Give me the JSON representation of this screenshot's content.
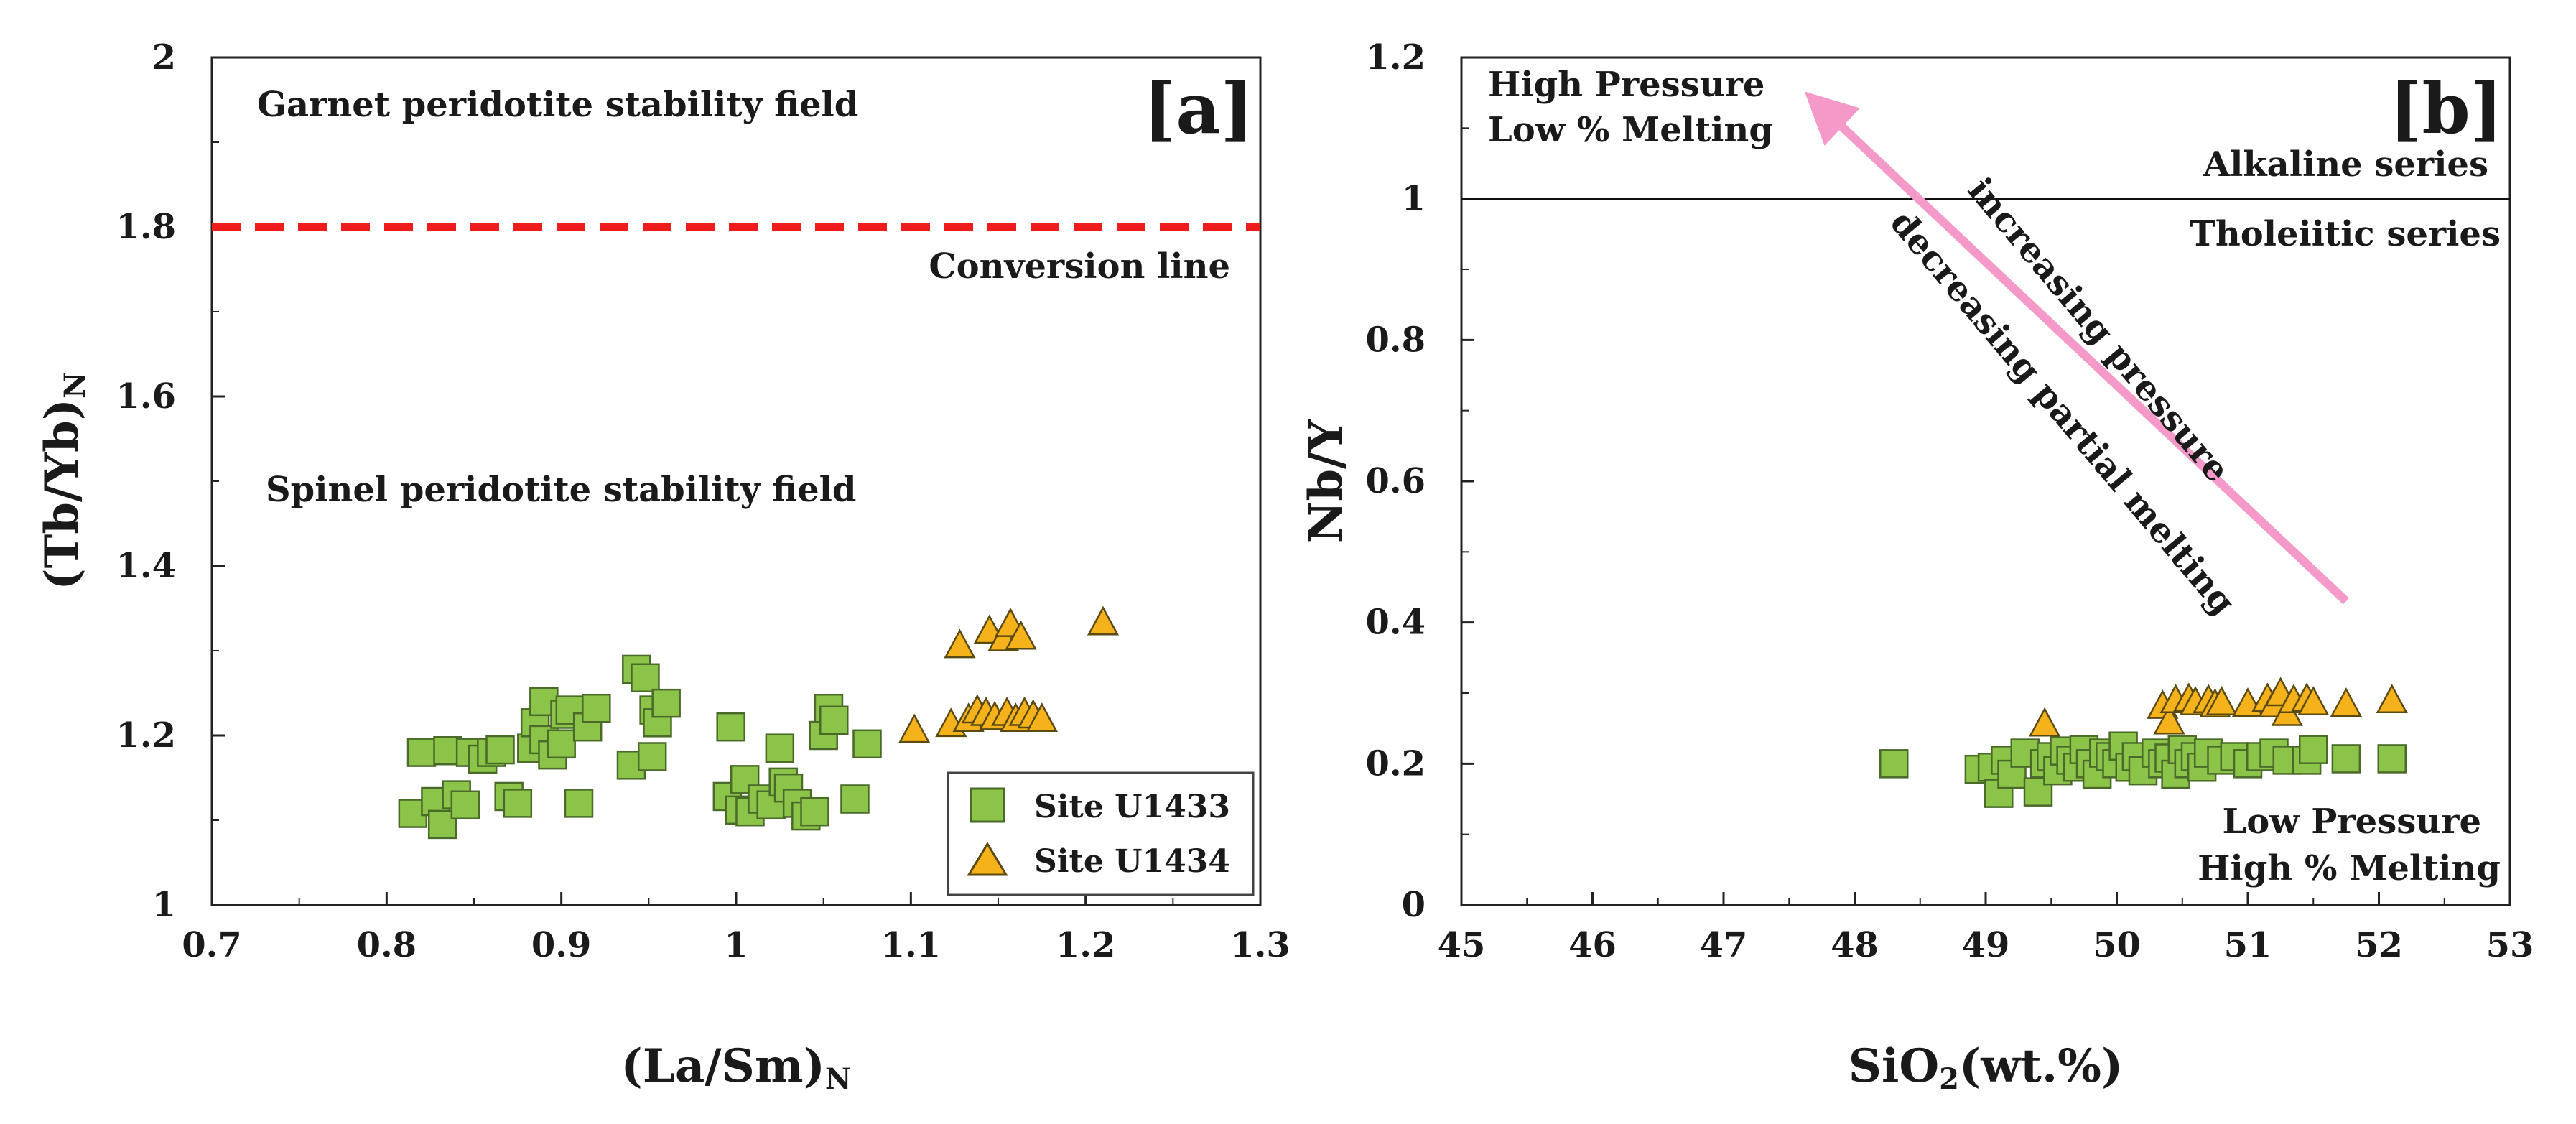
{
  "colors": {
    "u1433_fill": "#8cc44a",
    "u1433_stroke": "#4a6a2a",
    "u1434_fill": "#f5b21a",
    "u1434_stroke": "#5a4a10",
    "conversion_line": "#ee1c1c",
    "arrow": "#f59ac8",
    "axis": "#222222"
  },
  "chart_data": [
    {
      "id": "a",
      "type": "scatter",
      "panel_label": "[a]",
      "xlabel": {
        "main": "(La/Sm)",
        "sub": "N"
      },
      "ylabel": {
        "main": "(Tb/Yb)",
        "sub": "N"
      },
      "xlim": [
        0.7,
        1.3
      ],
      "ylim": [
        1,
        2
      ],
      "xticks": [
        0.7,
        0.8,
        0.9,
        1,
        1.1,
        1.2,
        1.3
      ],
      "xtick_labels": [
        "0.7",
        "0.8",
        "0.9",
        "1",
        "1.1",
        "1.2",
        "1.3"
      ],
      "yticks": [
        1,
        1.2,
        1.4,
        1.6,
        1.8,
        2
      ],
      "ytick_labels": [
        "1",
        "1.2",
        "1.4",
        "1.6",
        "1.8",
        "2"
      ],
      "grid": false,
      "reference_lines": [
        {
          "y": 1.8,
          "style": "dashed",
          "label": "Conversion line"
        }
      ],
      "annotations": [
        "Garnet peridotite stability field",
        "Spinel peridotite stability field"
      ],
      "legend": {
        "position": "bottom-right",
        "entries": [
          "Site U1433",
          "Site U1434"
        ]
      },
      "series": [
        {
          "name": "Site U1433",
          "marker": "square",
          "points": [
            [
              0.815,
              1.108
            ],
            [
              0.82,
              1.18
            ],
            [
              0.828,
              1.122
            ],
            [
              0.832,
              1.095
            ],
            [
              0.835,
              1.182
            ],
            [
              0.84,
              1.13
            ],
            [
              0.845,
              1.118
            ],
            [
              0.848,
              1.18
            ],
            [
              0.855,
              1.172
            ],
            [
              0.86,
              1.18
            ],
            [
              0.865,
              1.183
            ],
            [
              0.87,
              1.128
            ],
            [
              0.875,
              1.12
            ],
            [
              0.883,
              1.185
            ],
            [
              0.885,
              1.215
            ],
            [
              0.89,
              1.195
            ],
            [
              0.89,
              1.24
            ],
            [
              0.895,
              1.177
            ],
            [
              0.9,
              1.19
            ],
            [
              0.902,
              1.225
            ],
            [
              0.905,
              1.23
            ],
            [
              0.91,
              1.12
            ],
            [
              0.915,
              1.21
            ],
            [
              0.92,
              1.232
            ],
            [
              0.94,
              1.165
            ],
            [
              0.943,
              1.278
            ],
            [
              0.948,
              1.268
            ],
            [
              0.952,
              1.175
            ],
            [
              0.953,
              1.23
            ],
            [
              0.955,
              1.215
            ],
            [
              0.96,
              1.238
            ],
            [
              0.995,
              1.128
            ],
            [
              0.997,
              1.21
            ],
            [
              1.002,
              1.112
            ],
            [
              1.005,
              1.148
            ],
            [
              1.008,
              1.11
            ],
            [
              1.015,
              1.125
            ],
            [
              1.02,
              1.118
            ],
            [
              1.025,
              1.185
            ],
            [
              1.027,
              1.145
            ],
            [
              1.03,
              1.138
            ],
            [
              1.035,
              1.12
            ],
            [
              1.04,
              1.105
            ],
            [
              1.045,
              1.11
            ],
            [
              1.05,
              1.2
            ],
            [
              1.053,
              1.232
            ],
            [
              1.056,
              1.218
            ],
            [
              1.068,
              1.125
            ],
            [
              1.075,
              1.19
            ]
          ]
        },
        {
          "name": "Site U1434",
          "marker": "triangle",
          "points": [
            [
              1.102,
              1.205
            ],
            [
              1.123,
              1.212
            ],
            [
              1.128,
              1.305
            ],
            [
              1.133,
              1.218
            ],
            [
              1.138,
              1.228
            ],
            [
              1.143,
              1.225
            ],
            [
              1.145,
              1.322
            ],
            [
              1.148,
              1.22
            ],
            [
              1.153,
              1.313
            ],
            [
              1.155,
              1.225
            ],
            [
              1.157,
              1.33
            ],
            [
              1.16,
              1.218
            ],
            [
              1.163,
              1.315
            ],
            [
              1.165,
              1.225
            ],
            [
              1.17,
              1.222
            ],
            [
              1.175,
              1.218
            ],
            [
              1.21,
              1.332
            ]
          ]
        }
      ]
    },
    {
      "id": "b",
      "type": "scatter",
      "panel_label": "[b]",
      "xlabel": {
        "main": "SiO",
        "sub": "2",
        "tail": "(wt.%)"
      },
      "ylabel": {
        "main": "Nb/Y"
      },
      "xlim": [
        45,
        53
      ],
      "ylim": [
        0,
        1.2
      ],
      "xticks": [
        45,
        46,
        47,
        48,
        49,
        50,
        51,
        52,
        53
      ],
      "xtick_labels": [
        "45",
        "46",
        "47",
        "48",
        "49",
        "50",
        "51",
        "52",
        "53"
      ],
      "yticks": [
        0,
        0.2,
        0.4,
        0.6,
        0.8,
        1,
        1.2
      ],
      "ytick_labels": [
        "0",
        "0.2",
        "0.4",
        "0.6",
        "0.8",
        "1",
        "1.2"
      ],
      "grid": false,
      "reference_lines": [
        {
          "y": 1,
          "style": "solid",
          "label_above": "Alkaline series",
          "label_below": "Tholeiitic series"
        }
      ],
      "annotations": [
        "High Pressure",
        "Low % Melting",
        "Low Pressure",
        "High % Melting",
        "increasing pressure",
        "decreasing partial melting"
      ],
      "arrow": {
        "from": [
          51.75,
          0.43
        ],
        "to": [
          47.8,
          1.12
        ]
      },
      "series": [
        {
          "name": "Site U1433",
          "marker": "square",
          "points": [
            [
              48.3,
              0.2
            ],
            [
              48.95,
              0.192
            ],
            [
              49.05,
              0.195
            ],
            [
              49.1,
              0.158
            ],
            [
              49.15,
              0.205
            ],
            [
              49.2,
              0.185
            ],
            [
              49.3,
              0.215
            ],
            [
              49.4,
              0.16
            ],
            [
              49.45,
              0.2
            ],
            [
              49.5,
              0.21
            ],
            [
              49.55,
              0.19
            ],
            [
              49.6,
              0.218
            ],
            [
              49.65,
              0.205
            ],
            [
              49.7,
              0.195
            ],
            [
              49.75,
              0.22
            ],
            [
              49.8,
              0.2
            ],
            [
              49.85,
              0.185
            ],
            [
              49.9,
              0.215
            ],
            [
              49.95,
              0.21
            ],
            [
              50.0,
              0.2
            ],
            [
              50.05,
              0.225
            ],
            [
              50.1,
              0.195
            ],
            [
              50.15,
              0.21
            ],
            [
              50.2,
              0.19
            ],
            [
              50.3,
              0.215
            ],
            [
              50.35,
              0.2
            ],
            [
              50.4,
              0.208
            ],
            [
              50.45,
              0.185
            ],
            [
              50.5,
              0.22
            ],
            [
              50.55,
              0.2
            ],
            [
              50.6,
              0.21
            ],
            [
              50.65,
              0.195
            ],
            [
              50.7,
              0.215
            ],
            [
              50.8,
              0.205
            ],
            [
              50.9,
              0.21
            ],
            [
              51.0,
              0.2
            ],
            [
              51.1,
              0.21
            ],
            [
              51.2,
              0.215
            ],
            [
              51.3,
              0.205
            ],
            [
              51.45,
              0.205
            ],
            [
              51.5,
              0.22
            ],
            [
              51.75,
              0.207
            ],
            [
              52.1,
              0.207
            ]
          ]
        },
        {
          "name": "Site U1434",
          "marker": "triangle",
          "points": [
            [
              49.45,
              0.255
            ],
            [
              50.35,
              0.28
            ],
            [
              50.4,
              0.258
            ],
            [
              50.45,
              0.288
            ],
            [
              50.55,
              0.29
            ],
            [
              50.6,
              0.285
            ],
            [
              50.7,
              0.288
            ],
            [
              50.75,
              0.282
            ],
            [
              50.8,
              0.285
            ],
            [
              51.0,
              0.283
            ],
            [
              51.15,
              0.29
            ],
            [
              51.2,
              0.282
            ],
            [
              51.25,
              0.298
            ],
            [
              51.3,
              0.27
            ],
            [
              51.35,
              0.288
            ],
            [
              51.45,
              0.29
            ],
            [
              51.5,
              0.285
            ],
            [
              51.75,
              0.283
            ],
            [
              52.1,
              0.288
            ]
          ]
        }
      ]
    }
  ]
}
